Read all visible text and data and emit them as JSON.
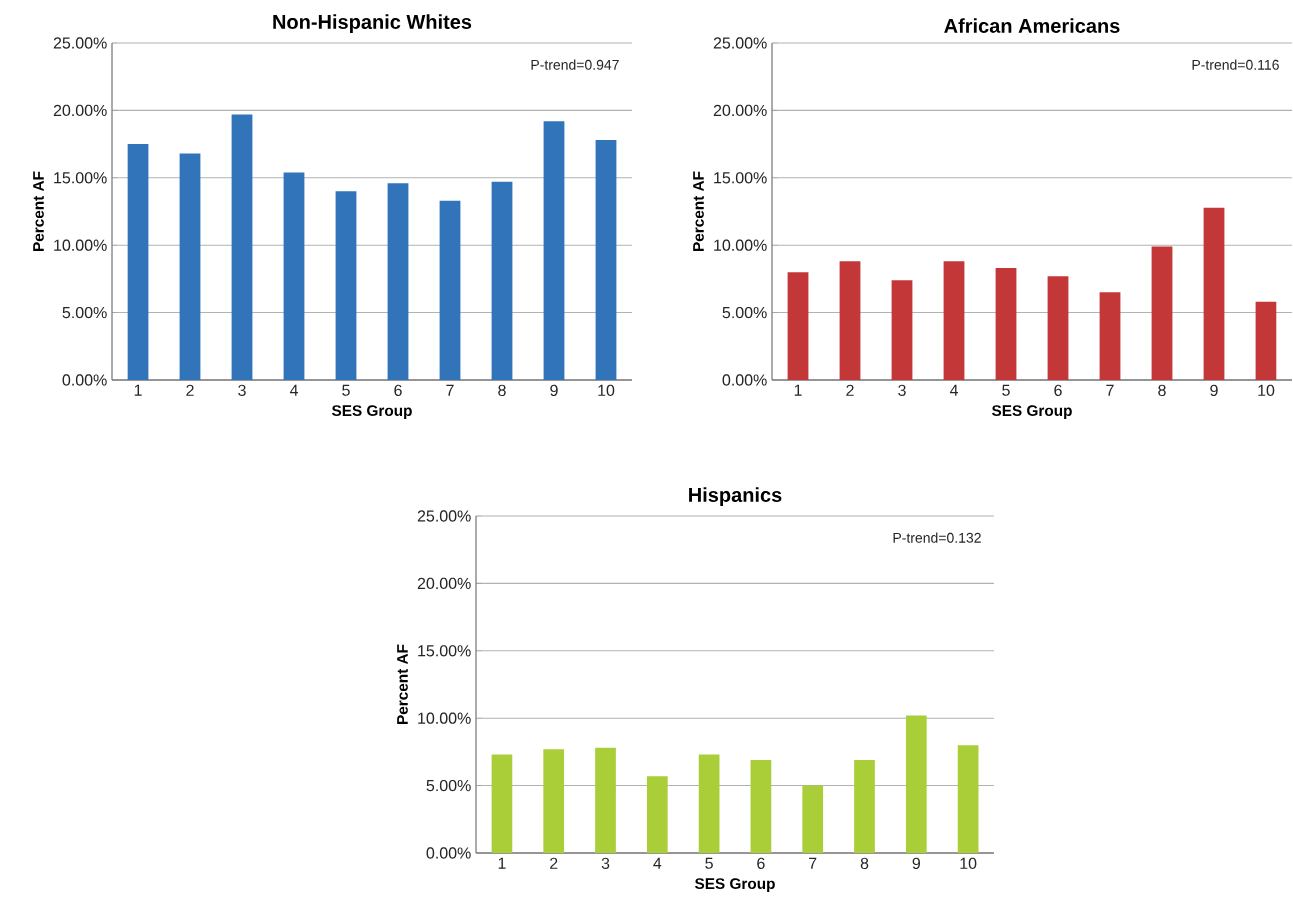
{
  "chart_data": [
    {
      "type": "bar",
      "title": "Non-Hispanic Whites",
      "xlabel": "SES Group",
      "ylabel": "Percent AF",
      "categories": [
        "1",
        "2",
        "3",
        "4",
        "5",
        "6",
        "7",
        "8",
        "9",
        "10"
      ],
      "values": [
        17.5,
        16.8,
        19.7,
        15.4,
        14.0,
        14.6,
        13.3,
        14.7,
        19.2,
        17.8
      ],
      "color": "#3174b9",
      "ylim": [
        0,
        25
      ],
      "yticks": [
        {
          "value": 0,
          "label": "0.00%"
        },
        {
          "value": 5,
          "label": "5.00%"
        },
        {
          "value": 10,
          "label": "10.00%"
        },
        {
          "value": 15,
          "label": "15.00%"
        },
        {
          "value": 20,
          "label": "20.00%"
        },
        {
          "value": 25,
          "label": "25.00%"
        }
      ],
      "grid": "y",
      "annotations": [
        "P-trend=0.947"
      ]
    },
    {
      "type": "bar",
      "title": "African Americans",
      "xlabel": "SES Group",
      "ylabel": "Percent AF",
      "categories": [
        "1",
        "2",
        "3",
        "4",
        "5",
        "6",
        "7",
        "8",
        "9",
        "10"
      ],
      "values": [
        8.0,
        8.8,
        7.4,
        8.8,
        8.3,
        7.7,
        6.5,
        9.9,
        12.8,
        5.8
      ],
      "color": "#c33739",
      "ylim": [
        0,
        25
      ],
      "yticks": [
        {
          "value": 0,
          "label": "0.00%"
        },
        {
          "value": 5,
          "label": "5.00%"
        },
        {
          "value": 10,
          "label": "10.00%"
        },
        {
          "value": 15,
          "label": "15.00%"
        },
        {
          "value": 20,
          "label": "20.00%"
        },
        {
          "value": 25,
          "label": "25.00%"
        }
      ],
      "grid": "y",
      "annotations": [
        "P-trend=0.116"
      ]
    },
    {
      "type": "bar",
      "title": "Hispanics",
      "xlabel": "SES Group",
      "ylabel": "Percent AF",
      "categories": [
        "1",
        "2",
        "3",
        "4",
        "5",
        "6",
        "7",
        "8",
        "9",
        "10"
      ],
      "values": [
        7.3,
        7.7,
        7.8,
        5.7,
        7.3,
        6.9,
        5.0,
        6.9,
        10.2,
        8.0
      ],
      "color": "#a9ce38",
      "ylim": [
        0,
        25
      ],
      "yticks": [
        {
          "value": 0,
          "label": "0.00%"
        },
        {
          "value": 5,
          "label": "5.00%"
        },
        {
          "value": 10,
          "label": "10.00%"
        },
        {
          "value": 15,
          "label": "15.00%"
        },
        {
          "value": 20,
          "label": "20.00%"
        },
        {
          "value": 25,
          "label": "25.00%"
        }
      ],
      "grid": "y",
      "annotations": [
        "P-trend=0.132"
      ]
    }
  ]
}
